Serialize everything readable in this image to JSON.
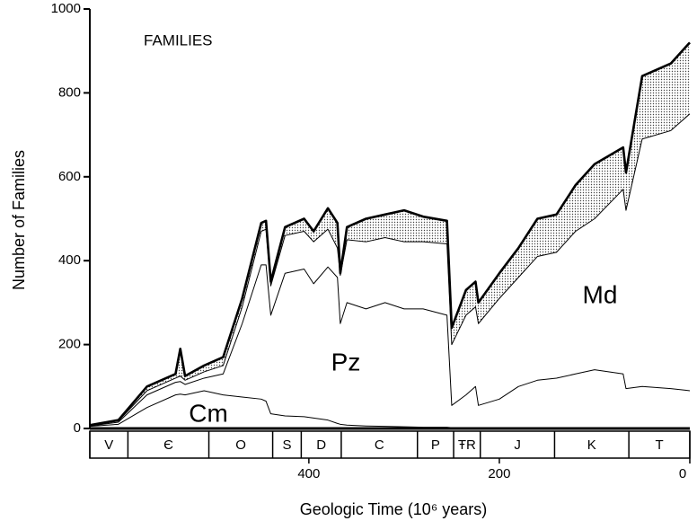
{
  "chart_data": {
    "type": "stacked-area",
    "annotation": "FAMILIES",
    "xlabel": "Geologic Time (10⁶ years)",
    "ylabel": "Number of Families",
    "x": [
      630,
      600,
      570,
      540,
      535,
      530,
      510,
      490,
      470,
      450,
      445,
      440,
      425,
      405,
      395,
      380,
      370,
      367,
      360,
      340,
      320,
      300,
      280,
      255,
      250,
      235,
      225,
      222,
      200,
      180,
      160,
      140,
      120,
      100,
      70,
      67,
      50,
      20,
      0
    ],
    "series": [
      {
        "name": "Cm",
        "color": "#000000",
        "fill": "#ffffff",
        "width": 1,
        "values": [
          5,
          10,
          50,
          80,
          82,
          80,
          90,
          80,
          75,
          70,
          65,
          35,
          30,
          28,
          25,
          20,
          12,
          10,
          8,
          6,
          5,
          4,
          3,
          3,
          2,
          1,
          0,
          0,
          0,
          0,
          0,
          0,
          0,
          0,
          0,
          0,
          0,
          0,
          0
        ]
      },
      {
        "name": "Pz",
        "color": "#000000",
        "fill": "#ffffff",
        "width": 1,
        "values": [
          1,
          5,
          30,
          30,
          30,
          25,
          30,
          50,
          175,
          320,
          325,
          235,
          340,
          352,
          320,
          365,
          348,
          240,
          292,
          279,
          295,
          281,
          282,
          267,
          53,
          79,
          100,
          55,
          70,
          100,
          115,
          120,
          130,
          140,
          130,
          95,
          100,
          95,
          90
        ]
      },
      {
        "name": "Md",
        "color": "#000000",
        "fill": "#ffffff",
        "width": 1,
        "values": [
          1,
          3,
          10,
          10,
          13,
          10,
          15,
          20,
          40,
          80,
          85,
          70,
          90,
          90,
          100,
          90,
          70,
          115,
          150,
          160,
          155,
          160,
          160,
          170,
          145,
          190,
          190,
          195,
          240,
          260,
          295,
          300,
          340,
          360,
          440,
          425,
          590,
          615,
          660
        ]
      },
      {
        "color": "#000000",
        "fill": "dotted",
        "width": 2.6,
        "values": [
          1,
          2,
          10,
          10,
          65,
          10,
          15,
          20,
          20,
          20,
          20,
          10,
          20,
          30,
          25,
          50,
          60,
          5,
          30,
          55,
          55,
          75,
          60,
          55,
          40,
          60,
          60,
          50,
          60,
          70,
          90,
          90,
          110,
          130,
          100,
          90,
          150,
          160,
          170
        ]
      }
    ],
    "periods": {
      "labels": [
        "V",
        "Є",
        "O",
        "S",
        "D",
        "C",
        "P",
        "ŦR",
        "J",
        "K",
        "T"
      ],
      "bounds": [
        630,
        590,
        505,
        438,
        408,
        366,
        286,
        248,
        220,
        142,
        64,
        0
      ]
    },
    "xlim": [
      630,
      0
    ],
    "xticks": [
      400,
      200,
      0
    ],
    "ylim": [
      0,
      1000
    ],
    "yticks": [
      0,
      200,
      400,
      600,
      800,
      1000
    ]
  }
}
